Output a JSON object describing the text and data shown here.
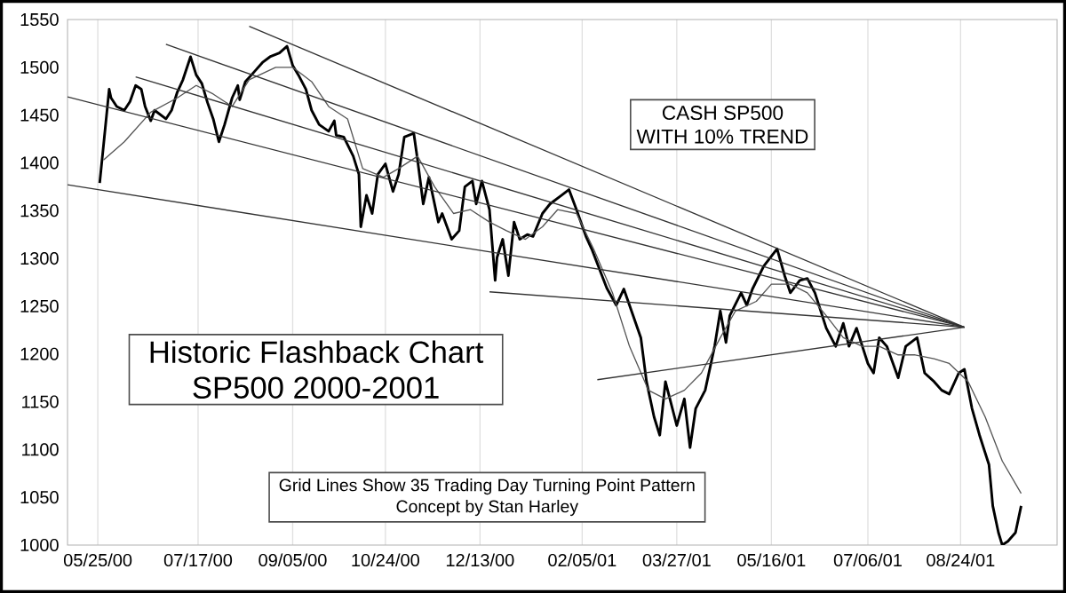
{
  "chart_data": {
    "type": "line",
    "title": "Historic Flashback Chart",
    "subtitle": "SP500 2000-2001",
    "annotations": [
      "CASH SP500",
      "WITH 10% TREND",
      "Grid Lines Show 35 Trading Day Turning Point Pattern",
      "Concept by Stan Harley"
    ],
    "xlim": [
      "2000-05-09",
      "2001-10-14"
    ],
    "ylim": [
      1000,
      1550
    ],
    "xticks": [
      {
        "value": "2000-05-25",
        "label": "05/25/00"
      },
      {
        "value": "2000-07-17",
        "label": "07/17/00"
      },
      {
        "value": "2000-09-05",
        "label": "09/05/00"
      },
      {
        "value": "2000-10-24",
        "label": "10/24/00"
      },
      {
        "value": "2000-12-13",
        "label": "12/13/00"
      },
      {
        "value": "2001-02-05",
        "label": "02/05/01"
      },
      {
        "value": "2001-03-27",
        "label": "03/27/01"
      },
      {
        "value": "2001-05-16",
        "label": "05/16/01"
      },
      {
        "value": "2001-07-06",
        "label": "07/06/01"
      },
      {
        "value": "2001-08-24",
        "label": "08/24/01"
      }
    ],
    "yticks": [
      1000,
      1050,
      1100,
      1150,
      1200,
      1250,
      1300,
      1350,
      1400,
      1450,
      1500,
      1550
    ],
    "grid": "x",
    "marker": "none",
    "line_style": "solid",
    "series": [
      {
        "color": "#000000",
        "x": [
          "2000-05-26",
          "2000-05-28",
          "2000-05-31",
          "2000-06-01",
          "2000-06-04",
          "2000-06-08",
          "2000-06-11",
          "2000-06-14",
          "2000-06-17",
          "2000-06-19",
          "2000-06-22",
          "2000-06-24",
          "2000-06-30",
          "2000-07-03",
          "2000-07-06",
          "2000-07-09",
          "2000-07-13",
          "2000-07-16",
          "2000-07-19",
          "2000-07-22",
          "2000-07-25",
          "2000-07-28",
          "2000-07-31",
          "2000-08-04",
          "2000-08-07",
          "2000-08-08",
          "2000-08-11",
          "2000-08-16",
          "2000-08-20",
          "2000-08-24",
          "2000-08-29",
          "2000-09-02",
          "2000-09-05",
          "2000-09-08",
          "2000-09-12",
          "2000-09-15",
          "2000-09-19",
          "2000-09-24",
          "2000-09-27",
          "2000-09-28",
          "2000-10-02",
          "2000-10-07",
          "2000-10-10",
          "2000-10-11",
          "2000-10-14",
          "2000-10-17",
          "2000-10-20",
          "2000-10-24",
          "2000-10-28",
          "2000-10-31",
          "2000-11-03",
          "2000-11-08",
          "2000-11-10",
          "2000-11-13",
          "2000-11-16",
          "2000-11-21",
          "2000-11-23",
          "2000-11-28",
          "2000-12-02",
          "2000-12-05",
          "2000-12-09",
          "2000-12-11",
          "2000-12-14",
          "2000-12-18",
          "2000-12-21",
          "2000-12-22",
          "2000-12-25",
          "2000-12-28",
          "2000-12-31",
          "2001-01-03",
          "2001-01-07",
          "2001-01-10",
          "2001-01-15",
          "2001-01-19",
          "2001-01-25",
          "2001-01-29",
          "2001-02-02",
          "2001-02-07",
          "2001-02-10",
          "2001-02-18",
          "2001-02-23",
          "2001-02-27",
          "2001-03-02",
          "2001-03-08",
          "2001-03-11",
          "2001-03-15",
          "2001-03-18",
          "2001-03-21",
          "2001-03-27",
          "2001-03-31",
          "2001-04-03",
          "2001-04-06",
          "2001-04-11",
          "2001-04-16",
          "2001-04-19",
          "2001-04-22",
          "2001-04-24",
          "2001-04-30",
          "2001-05-03",
          "2001-05-06",
          "2001-05-12",
          "2001-05-19",
          "2001-05-23",
          "2001-05-26",
          "2001-05-31",
          "2001-06-04",
          "2001-06-08",
          "2001-06-14",
          "2001-06-19",
          "2001-06-23",
          "2001-06-26",
          "2001-06-30",
          "2001-07-06",
          "2001-07-09",
          "2001-07-12",
          "2001-07-16",
          "2001-07-22",
          "2001-07-26",
          "2001-08-01",
          "2001-08-05",
          "2001-08-10",
          "2001-08-14",
          "2001-08-18",
          "2001-08-23",
          "2001-08-26",
          "2001-08-30",
          "2001-09-03",
          "2001-09-08",
          "2001-09-10",
          "2001-09-13",
          "2001-09-15",
          "2001-09-18",
          "2001-09-22",
          "2001-09-25"
        ],
        "values": [
          1379,
          1418,
          1477,
          1468,
          1459,
          1455,
          1464,
          1481,
          1477,
          1459,
          1444,
          1455,
          1446,
          1455,
          1474,
          1487,
          1511,
          1492,
          1483,
          1463,
          1446,
          1422,
          1440,
          1468,
          1481,
          1466,
          1485,
          1496,
          1505,
          1511,
          1515,
          1522,
          1502,
          1492,
          1477,
          1455,
          1440,
          1433,
          1444,
          1429,
          1427,
          1407,
          1388,
          1333,
          1366,
          1347,
          1388,
          1399,
          1370,
          1388,
          1427,
          1431,
          1403,
          1357,
          1385,
          1338,
          1347,
          1320,
          1329,
          1375,
          1381,
          1357,
          1381,
          1351,
          1277,
          1301,
          1320,
          1282,
          1338,
          1320,
          1325,
          1323,
          1347,
          1357,
          1366,
          1372,
          1351,
          1323,
          1310,
          1269,
          1251,
          1268,
          1251,
          1217,
          1171,
          1134,
          1115,
          1171,
          1125,
          1153,
          1102,
          1143,
          1162,
          1208,
          1245,
          1212,
          1240,
          1264,
          1251,
          1268,
          1292,
          1310,
          1282,
          1264,
          1277,
          1279,
          1264,
          1227,
          1208,
          1232,
          1208,
          1227,
          1190,
          1180,
          1217,
          1208,
          1175,
          1208,
          1217,
          1180,
          1171,
          1162,
          1158,
          1180,
          1184,
          1143,
          1115,
          1084,
          1041,
          1013,
          1000,
          1004,
          1013,
          1041
        ]
      },
      {
        "color": "#555555",
        "x": [
          "2000-05-28",
          "2000-06-08",
          "2000-06-22",
          "2000-07-06",
          "2000-07-16",
          "2000-07-25",
          "2000-08-04",
          "2000-08-13",
          "2000-08-27",
          "2000-09-05",
          "2000-09-15",
          "2000-09-24",
          "2000-10-04",
          "2000-10-12",
          "2000-10-23",
          "2000-10-31",
          "2000-11-10",
          "2000-11-19",
          "2000-11-29",
          "2000-12-08",
          "2000-12-18",
          "2000-12-27",
          "2001-01-06",
          "2001-01-15",
          "2001-01-23",
          "2001-02-02",
          "2001-02-11",
          "2001-02-21",
          "2001-03-02",
          "2001-03-12",
          "2001-03-21",
          "2001-03-31",
          "2001-04-09",
          "2001-04-19",
          "2001-04-27",
          "2001-05-08",
          "2001-05-16",
          "2001-05-26",
          "2001-06-04",
          "2001-06-14",
          "2001-06-23",
          "2001-07-03",
          "2001-07-12",
          "2001-07-22",
          "2001-07-31",
          "2001-08-10",
          "2001-08-18",
          "2001-08-28",
          "2001-09-06",
          "2001-09-15",
          "2001-09-25"
        ],
        "values": [
          1403,
          1422,
          1453,
          1468,
          1481,
          1472,
          1459,
          1487,
          1500,
          1500,
          1485,
          1459,
          1446,
          1394,
          1385,
          1394,
          1407,
          1375,
          1347,
          1351,
          1338,
          1329,
          1320,
          1333,
          1351,
          1347,
          1310,
          1264,
          1208,
          1162,
          1153,
          1162,
          1180,
          1217,
          1245,
          1255,
          1273,
          1273,
          1264,
          1240,
          1217,
          1208,
          1208,
          1199,
          1199,
          1195,
          1190,
          1171,
          1134,
          1088,
          1054
        ]
      },
      {
        "color": "#333333",
        "x": [
          "2000-08-13",
          "2001-08-26"
        ],
        "values": [
          1543,
          1228
        ]
      },
      {
        "color": "#333333",
        "x": [
          "2000-06-30",
          "2001-08-26"
        ],
        "values": [
          1524,
          1228
        ]
      },
      {
        "color": "#333333",
        "x": [
          "2000-06-14",
          "2001-08-26"
        ],
        "values": [
          1490,
          1228
        ]
      },
      {
        "color": "#333333",
        "x": [
          "2000-05-09",
          "2001-08-26"
        ],
        "values": [
          1469,
          1228
        ]
      },
      {
        "color": "#333333",
        "x": [
          "2000-05-09",
          "2001-08-26"
        ],
        "values": [
          1377,
          1228
        ]
      },
      {
        "color": "#333333",
        "x": [
          "2000-12-18",
          "2001-08-26"
        ],
        "values": [
          1265,
          1228
        ]
      },
      {
        "color": "#333333",
        "x": [
          "2001-02-13",
          "2001-08-26"
        ],
        "values": [
          1173,
          1228
        ]
      }
    ]
  }
}
